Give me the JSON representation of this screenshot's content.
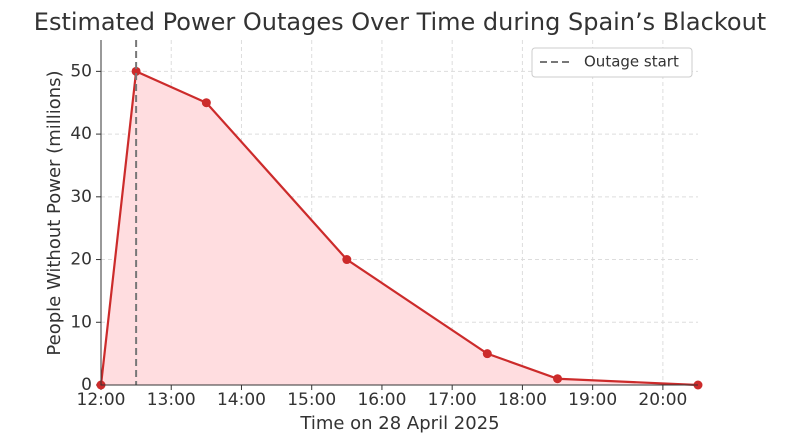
{
  "chart_data": {
    "type": "line",
    "title": "Estimated Power Outages Over Time during Spain’s Blackout",
    "x_label": "Time on 28 April 2025",
    "y_label": "People Without Power (millions)",
    "x": [
      12,
      12.5,
      13.5,
      15.5,
      17.5,
      18.5,
      20.5
    ],
    "series": [
      {
        "color": "#cc2b2b",
        "fill": "#ffdde0",
        "values": [
          0,
          50,
          45,
          20,
          5,
          1,
          0
        ]
      }
    ],
    "xlim": [
      12,
      20.5
    ],
    "xticks": [
      {
        "value": 12,
        "label": "12:00"
      },
      {
        "value": 13,
        "label": "13:00"
      },
      {
        "value": 14,
        "label": "14:00"
      },
      {
        "value": 15,
        "label": "15:00"
      },
      {
        "value": 16,
        "label": "16:00"
      },
      {
        "value": 17,
        "label": "17:00"
      },
      {
        "value": 18,
        "label": "18:00"
      },
      {
        "value": 19,
        "label": "19:00"
      },
      {
        "value": 20,
        "label": "20:00"
      }
    ],
    "ylim": [
      0,
      55
    ],
    "yticks": [
      0,
      10,
      20,
      30,
      40,
      50
    ],
    "grid": true,
    "vline": {
      "x": 12.5,
      "label": "Outage start",
      "color": "#777777"
    },
    "legend": "upper right"
  }
}
